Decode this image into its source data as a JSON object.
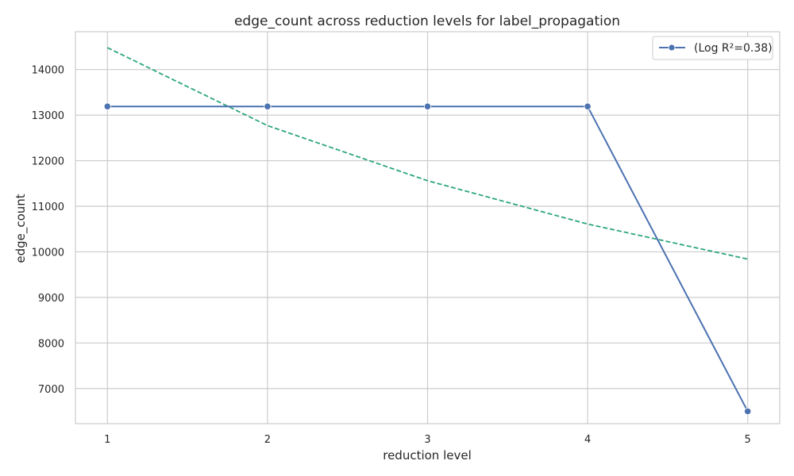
{
  "chart_data": {
    "type": "line",
    "title": "edge_count across reduction levels for label_propagation",
    "xlabel": "reduction level",
    "ylabel": "edge_count",
    "x": [
      1,
      2,
      3,
      4,
      5
    ],
    "x_ticks": [
      "1",
      "2",
      "3",
      "4",
      "5"
    ],
    "xlim": [
      0.8,
      5.2
    ],
    "ylim": [
      6230,
      14830
    ],
    "y_ticks": [
      7000,
      8000,
      9000,
      10000,
      11000,
      12000,
      13000,
      14000
    ],
    "y_tick_labels": [
      "7000",
      "8000",
      "9000",
      "10000",
      "11000",
      "12000",
      "13000",
      "14000"
    ],
    "grid": true,
    "legend_position": "top-right",
    "series": [
      {
        "name": "(Log R²=0.38)",
        "style": "solid-markers",
        "color": "#4c72b0",
        "values": [
          13190,
          13190,
          13190,
          13190,
          6500
        ]
      },
      {
        "style": "dashed",
        "color": "#2ca57f",
        "values": [
          14480,
          12770,
          11560,
          10610,
          9840
        ]
      }
    ]
  }
}
